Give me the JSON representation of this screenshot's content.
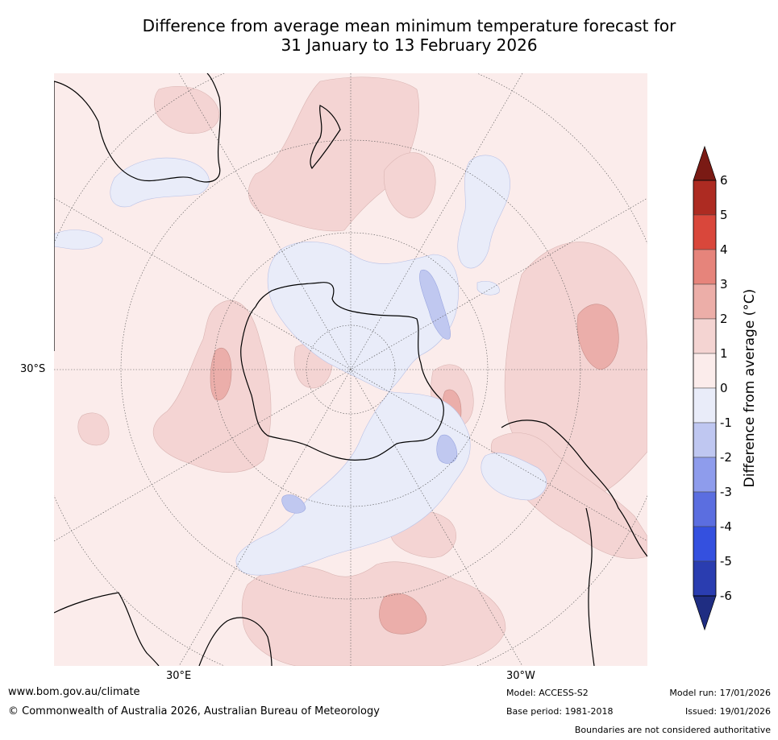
{
  "title": {
    "line1": "Difference from average mean minimum temperature forecast for",
    "line2": "31 January to 13 February 2026"
  },
  "map": {
    "projection": "south-polar",
    "lat_label": "30°S",
    "lon_labels": [
      "30°E",
      "30°W"
    ],
    "colors": {
      "background": "#fbeceb",
      "warm_1_2": "#f4d4d3",
      "warm_2_3": "#ebaeaa",
      "cool_0_1": "#e9ecf9",
      "cool_1_2": "#c0c8f0",
      "land_outline": "#000000"
    }
  },
  "colorbar": {
    "label": "Difference from average (°C)",
    "ticks": [
      "6",
      "5",
      "4",
      "3",
      "2",
      "1",
      "0",
      "-1",
      "-2",
      "-3",
      "-4",
      "-5",
      "-6"
    ],
    "colors": [
      "#7a1a14",
      "#ad2b22",
      "#d9473b",
      "#e6847b",
      "#ecaea8",
      "#f4d4d2",
      "#fbeceb",
      "#e9ecf9",
      "#bfc7f1",
      "#8e9cec",
      "#5b6ee0",
      "#3450df",
      "#2a3db0",
      "#1f2d82"
    ]
  },
  "footer": {
    "website": "www.bom.gov.au/climate",
    "copyright": "© Commonwealth of Australia 2026, Australian Bureau of Meteorology",
    "model": "Model: ACCESS-S2",
    "base_period": "Base period: 1981-2018",
    "model_run": "Model run: 17/01/2026",
    "issued": "Issued: 19/01/2026",
    "disclaimer": "Boundaries are not considered authoritative"
  }
}
